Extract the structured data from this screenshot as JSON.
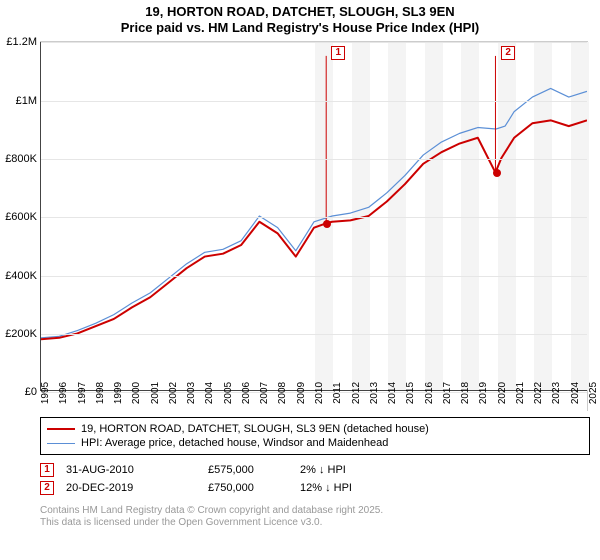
{
  "title": {
    "line1": "19, HORTON ROAD, DATCHET, SLOUGH, SL3 9EN",
    "line2": "Price paid vs. HM Land Registry's House Price Index (HPI)"
  },
  "chart": {
    "type": "line",
    "background_color": "#ffffff",
    "grid_color": "#e6e6e6",
    "shade_color": "#f4f4f4",
    "ylim": [
      0,
      1200000
    ],
    "ytick_step": 200000,
    "yticks": [
      "£0",
      "£200K",
      "£400K",
      "£600K",
      "£800K",
      "£1M",
      "£1.2M"
    ],
    "xlim": [
      1995,
      2025
    ],
    "xticks": [
      1995,
      1996,
      1997,
      1998,
      1999,
      2000,
      2001,
      2002,
      2003,
      2004,
      2005,
      2006,
      2007,
      2008,
      2009,
      2010,
      2011,
      2012,
      2013,
      2014,
      2015,
      2016,
      2017,
      2018,
      2019,
      2020,
      2021,
      2022,
      2023,
      2024,
      2025
    ],
    "shade_years": [
      2011,
      2013,
      2015,
      2017,
      2019,
      2021,
      2023,
      2025
    ],
    "line_width_main": 2,
    "line_width_alt": 1.2,
    "series": [
      {
        "name": "property",
        "label": "19, HORTON ROAD, DATCHET, SLOUGH, SL3 9EN (detached house)",
        "color": "#cc0000",
        "data": [
          [
            1995,
            175000
          ],
          [
            1996,
            180000
          ],
          [
            1997,
            195000
          ],
          [
            1998,
            220000
          ],
          [
            1999,
            245000
          ],
          [
            2000,
            285000
          ],
          [
            2001,
            320000
          ],
          [
            2002,
            370000
          ],
          [
            2003,
            420000
          ],
          [
            2004,
            460000
          ],
          [
            2005,
            470000
          ],
          [
            2006,
            500000
          ],
          [
            2007,
            580000
          ],
          [
            2008,
            540000
          ],
          [
            2009,
            460000
          ],
          [
            2009.5,
            510000
          ],
          [
            2010,
            560000
          ],
          [
            2010.67,
            575000
          ],
          [
            2011,
            580000
          ],
          [
            2012,
            585000
          ],
          [
            2013,
            600000
          ],
          [
            2014,
            650000
          ],
          [
            2015,
            710000
          ],
          [
            2016,
            780000
          ],
          [
            2017,
            820000
          ],
          [
            2018,
            850000
          ],
          [
            2019,
            870000
          ],
          [
            2019.97,
            750000
          ],
          [
            2020.3,
            800000
          ],
          [
            2021,
            870000
          ],
          [
            2022,
            920000
          ],
          [
            2023,
            930000
          ],
          [
            2024,
            910000
          ],
          [
            2025,
            930000
          ]
        ]
      },
      {
        "name": "hpi",
        "label": "HPI: Average price, detached house, Windsor and Maidenhead",
        "color": "#5b8fd6",
        "data": [
          [
            1995,
            180000
          ],
          [
            1996,
            185000
          ],
          [
            1997,
            205000
          ],
          [
            1998,
            230000
          ],
          [
            1999,
            260000
          ],
          [
            2000,
            300000
          ],
          [
            2001,
            335000
          ],
          [
            2002,
            385000
          ],
          [
            2003,
            435000
          ],
          [
            2004,
            475000
          ],
          [
            2005,
            485000
          ],
          [
            2006,
            515000
          ],
          [
            2007,
            600000
          ],
          [
            2008,
            560000
          ],
          [
            2009,
            480000
          ],
          [
            2009.5,
            530000
          ],
          [
            2010,
            580000
          ],
          [
            2011,
            600000
          ],
          [
            2012,
            610000
          ],
          [
            2013,
            630000
          ],
          [
            2014,
            680000
          ],
          [
            2015,
            740000
          ],
          [
            2016,
            810000
          ],
          [
            2017,
            855000
          ],
          [
            2018,
            885000
          ],
          [
            2019,
            905000
          ],
          [
            2020,
            900000
          ],
          [
            2020.5,
            910000
          ],
          [
            2021,
            960000
          ],
          [
            2022,
            1010000
          ],
          [
            2023,
            1040000
          ],
          [
            2024,
            1010000
          ],
          [
            2025,
            1030000
          ]
        ]
      }
    ],
    "markers": [
      {
        "id": "1",
        "x": 2010.67,
        "y": 575000,
        "color": "#cc0000"
      },
      {
        "id": "2",
        "x": 2019.97,
        "y": 750000,
        "color": "#cc0000"
      }
    ]
  },
  "legend": {
    "items": [
      {
        "color": "#cc0000",
        "width": 2,
        "label": "19, HORTON ROAD, DATCHET, SLOUGH, SL3 9EN (detached house)"
      },
      {
        "color": "#5b8fd6",
        "width": 1.2,
        "label": "HPI: Average price, detached house, Windsor and Maidenhead"
      }
    ]
  },
  "sales": [
    {
      "id": "1",
      "date": "31-AUG-2010",
      "price": "£575,000",
      "delta": "2% ↓ HPI",
      "color": "#cc0000"
    },
    {
      "id": "2",
      "date": "20-DEC-2019",
      "price": "£750,000",
      "delta": "12% ↓ HPI",
      "color": "#cc0000"
    }
  ],
  "footer": {
    "line1": "Contains HM Land Registry data © Crown copyright and database right 2025.",
    "line2": "This data is licensed under the Open Government Licence v3.0."
  }
}
